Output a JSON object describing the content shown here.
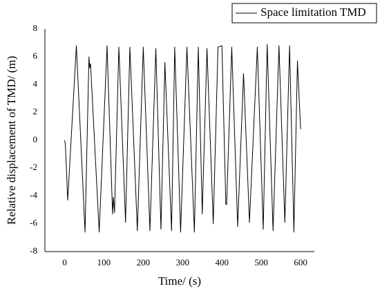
{
  "chart_data": {
    "type": "line",
    "xlabel": "Time/ (s)",
    "ylabel": "Relative displacement of TMD/ (m)",
    "x": [
      0,
      2,
      8,
      30,
      52,
      62,
      64,
      66,
      88,
      108,
      122,
      124,
      127,
      138,
      155,
      166,
      185,
      200,
      217,
      232,
      245,
      255,
      272,
      280,
      295,
      311,
      330,
      340,
      350,
      362,
      378,
      390,
      400,
      410,
      412,
      425,
      440,
      455,
      470,
      490,
      505,
      515,
      530,
      545,
      560,
      572,
      583,
      592,
      600
    ],
    "series": [
      {
        "name": "Space limitation TMD",
        "color": "#000000",
        "values": [
          0,
          -0.3,
          -4.3,
          6.8,
          -6.6,
          6.0,
          5.2,
          5.5,
          -6.6,
          6.8,
          -5.3,
          -4.1,
          -5.2,
          6.7,
          -5.9,
          6.7,
          -6.5,
          6.7,
          -6.5,
          6.6,
          -6.4,
          5.6,
          -6.5,
          6.7,
          -6.6,
          6.7,
          -6.6,
          6.7,
          -5.3,
          6.6,
          -6.0,
          6.7,
          6.8,
          -4.6,
          -4.6,
          6.7,
          -6.2,
          4.8,
          -5.9,
          6.7,
          -6.4,
          6.9,
          -6.5,
          6.8,
          -5.9,
          6.8,
          -6.6,
          5.7,
          0.8
        ]
      }
    ],
    "xlim": [
      -50,
      635
    ],
    "xticks": [
      0,
      100,
      200,
      300,
      400,
      500,
      600
    ],
    "ylim": [
      -8,
      8
    ],
    "yticks": [
      -8,
      -6,
      -4,
      -2,
      0,
      2,
      4,
      6,
      8
    ],
    "legend": "upper right",
    "grid": false
  }
}
